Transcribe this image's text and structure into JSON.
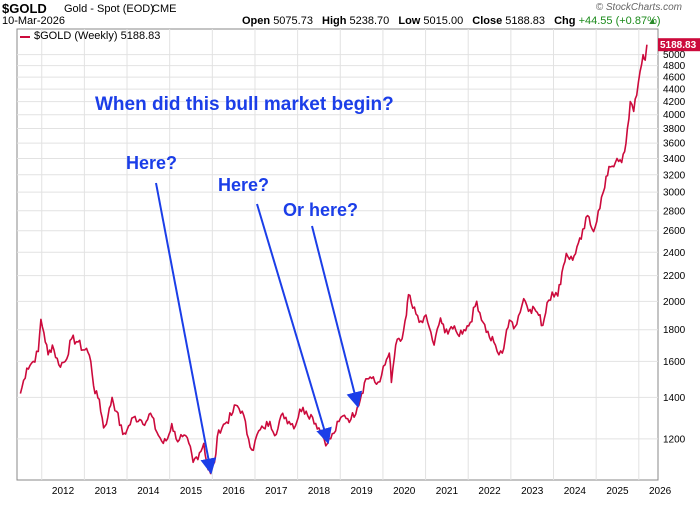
{
  "header": {
    "symbol": "$GOLD",
    "description": "Gold - Spot (EOD)",
    "exchange": "CME",
    "date": "10-Mar-2026",
    "watermark": "© StockCharts.com",
    "open_label": "Open",
    "open_value": "5075.73",
    "high_label": "High",
    "high_value": "5238.70",
    "low_label": "Low",
    "low_value": "5015.00",
    "close_label": "Close",
    "close_value": "5188.83",
    "chg_label": "Chg",
    "chg_value": "+44.55 (+0.87%)",
    "chg_arrow": "▲"
  },
  "legend": {
    "text": "$GOLD (Weekly) 5188.83"
  },
  "price_tag": "5188.83",
  "annotations": {
    "title": "When did this bull market begin?",
    "here1": "Here?",
    "here2": "Here?",
    "orhere": "Or here?"
  },
  "colors": {
    "series": "#cc0a3c",
    "annotation": "#1b3ee8",
    "grid": "#e2e2e2"
  },
  "chart_data": {
    "type": "line",
    "scale": "log",
    "series": [
      {
        "name": "$GOLD (Weekly)",
        "points": [
          [
            2011.5,
            1420
          ],
          [
            2011.65,
            1560
          ],
          [
            2011.8,
            1600
          ],
          [
            2011.92,
            1660
          ],
          [
            2011.98,
            1870
          ],
          [
            2012.05,
            1780
          ],
          [
            2012.15,
            1640
          ],
          [
            2012.25,
            1700
          ],
          [
            2012.4,
            1580
          ],
          [
            2012.55,
            1600
          ],
          [
            2012.7,
            1740
          ],
          [
            2012.85,
            1720
          ],
          [
            2012.97,
            1670
          ],
          [
            2013.05,
            1680
          ],
          [
            2013.15,
            1600
          ],
          [
            2013.25,
            1420
          ],
          [
            2013.35,
            1390
          ],
          [
            2013.45,
            1250
          ],
          [
            2013.55,
            1300
          ],
          [
            2013.65,
            1400
          ],
          [
            2013.75,
            1330
          ],
          [
            2013.9,
            1220
          ],
          [
            2014.0,
            1240
          ],
          [
            2014.15,
            1300
          ],
          [
            2014.3,
            1290
          ],
          [
            2014.45,
            1280
          ],
          [
            2014.55,
            1320
          ],
          [
            2014.7,
            1230
          ],
          [
            2014.85,
            1180
          ],
          [
            2014.95,
            1200
          ],
          [
            2015.05,
            1270
          ],
          [
            2015.15,
            1200
          ],
          [
            2015.3,
            1210
          ],
          [
            2015.45,
            1180
          ],
          [
            2015.55,
            1100
          ],
          [
            2015.7,
            1140
          ],
          [
            2015.8,
            1180
          ],
          [
            2015.9,
            1070
          ],
          [
            2015.96,
            1055
          ],
          [
            2016.05,
            1100
          ],
          [
            2016.15,
            1240
          ],
          [
            2016.3,
            1270
          ],
          [
            2016.45,
            1310
          ],
          [
            2016.55,
            1360
          ],
          [
            2016.7,
            1330
          ],
          [
            2016.85,
            1200
          ],
          [
            2016.96,
            1150
          ],
          [
            2017.05,
            1220
          ],
          [
            2017.2,
            1250
          ],
          [
            2017.35,
            1280
          ],
          [
            2017.5,
            1220
          ],
          [
            2017.65,
            1320
          ],
          [
            2017.8,
            1280
          ],
          [
            2017.95,
            1260
          ],
          [
            2018.05,
            1340
          ],
          [
            2018.2,
            1330
          ],
          [
            2018.35,
            1300
          ],
          [
            2018.5,
            1250
          ],
          [
            2018.62,
            1200
          ],
          [
            2018.7,
            1180
          ],
          [
            2018.85,
            1225
          ],
          [
            2018.97,
            1280
          ],
          [
            2019.1,
            1310
          ],
          [
            2019.25,
            1290
          ],
          [
            2019.4,
            1350
          ],
          [
            2019.5,
            1420
          ],
          [
            2019.6,
            1500
          ],
          [
            2019.7,
            1510
          ],
          [
            2019.85,
            1470
          ],
          [
            2019.97,
            1520
          ],
          [
            2020.05,
            1580
          ],
          [
            2020.15,
            1650
          ],
          [
            2020.2,
            1480
          ],
          [
            2020.3,
            1700
          ],
          [
            2020.45,
            1740
          ],
          [
            2020.55,
            1900
          ],
          [
            2020.6,
            2050
          ],
          [
            2020.7,
            1950
          ],
          [
            2020.85,
            1850
          ],
          [
            2020.97,
            1890
          ],
          [
            2021.05,
            1850
          ],
          [
            2021.2,
            1700
          ],
          [
            2021.35,
            1880
          ],
          [
            2021.45,
            1780
          ],
          [
            2021.6,
            1820
          ],
          [
            2021.75,
            1770
          ],
          [
            2021.9,
            1800
          ],
          [
            2022.05,
            1850
          ],
          [
            2022.2,
            2000
          ],
          [
            2022.35,
            1850
          ],
          [
            2022.5,
            1750
          ],
          [
            2022.6,
            1720
          ],
          [
            2022.72,
            1640
          ],
          [
            2022.8,
            1650
          ],
          [
            2022.9,
            1800
          ],
          [
            2023.0,
            1860
          ],
          [
            2023.1,
            1820
          ],
          [
            2023.3,
            2020
          ],
          [
            2023.45,
            1940
          ],
          [
            2023.55,
            1950
          ],
          [
            2023.65,
            1900
          ],
          [
            2023.75,
            1830
          ],
          [
            2023.85,
            1990
          ],
          [
            2023.97,
            2070
          ],
          [
            2024.1,
            2040
          ],
          [
            2024.2,
            2230
          ],
          [
            2024.3,
            2390
          ],
          [
            2024.45,
            2330
          ],
          [
            2024.55,
            2450
          ],
          [
            2024.65,
            2520
          ],
          [
            2024.8,
            2750
          ],
          [
            2024.9,
            2620
          ],
          [
            2024.98,
            2640
          ],
          [
            2025.05,
            2800
          ],
          [
            2025.2,
            3050
          ],
          [
            2025.3,
            3300
          ],
          [
            2025.45,
            3350
          ],
          [
            2025.6,
            3350
          ],
          [
            2025.7,
            3600
          ],
          [
            2025.8,
            4200
          ],
          [
            2025.88,
            4050
          ],
          [
            2025.95,
            4300
          ],
          [
            2026.03,
            4700
          ],
          [
            2026.1,
            5000
          ],
          [
            2026.15,
            4900
          ],
          [
            2026.19,
            5188.83
          ]
        ]
      }
    ],
    "x_ticks": [
      "2012",
      "2013",
      "2014",
      "2015",
      "2016",
      "2017",
      "2018",
      "2019",
      "2020",
      "2021",
      "2022",
      "2023",
      "2024",
      "2025",
      "2026"
    ],
    "y_ticks": [
      "1200",
      "1400",
      "1600",
      "1800",
      "2000",
      "2200",
      "2400",
      "2600",
      "2800",
      "3000",
      "3200",
      "3400",
      "3600",
      "3800",
      "4000",
      "4200",
      "4400",
      "4600",
      "4800",
      "5000"
    ],
    "ylim": [
      1030,
      5500
    ],
    "xlim": [
      2011.42,
      2026.45
    ],
    "grid": true,
    "legend_position": "top-left",
    "arrows": [
      {
        "from": "here1",
        "to": [
          2015.96,
          1055
        ]
      },
      {
        "from": "here2",
        "to": [
          2018.7,
          1180
        ]
      },
      {
        "from": "orhere",
        "to": [
          2019.4,
          1350
        ]
      }
    ]
  }
}
